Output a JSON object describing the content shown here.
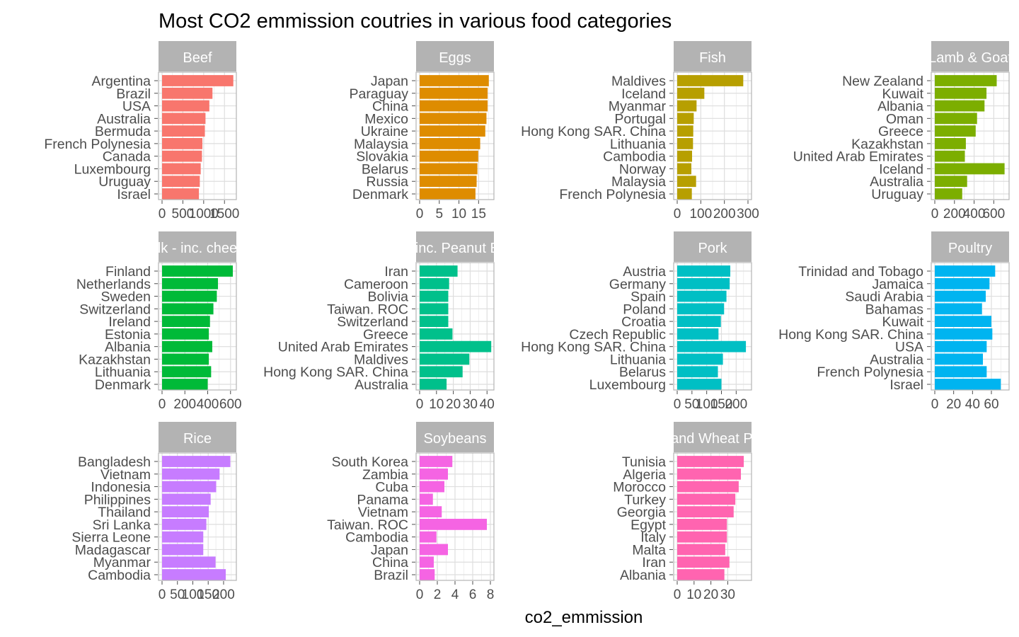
{
  "chart_data": {
    "type": "bar",
    "title": "Most CO2 emmission coutries in various food categories",
    "xlabel": "co2_emmission",
    "ylabel": "",
    "grid": true,
    "legend": "none",
    "panels": [
      {
        "name": "Beef",
        "color": "#F8766D",
        "xlim": [
          0,
          1700
        ],
        "ticks": [
          0,
          500,
          1000,
          1500
        ],
        "tick_labels": [
          "0",
          "500",
          "1000",
          "1500"
        ],
        "categories": [
          "Argentina",
          "Brazil",
          "USA",
          "Australia",
          "Bermuda",
          "French Polynesia",
          "Canada",
          "Luxembourg",
          "Uruguay",
          "Israel"
        ],
        "values": [
          1712,
          1211,
          1136,
          1044,
          1029,
          969,
          959,
          929,
          907,
          886
        ]
      },
      {
        "name": "Eggs",
        "color": "#DE8C00",
        "xlim": [
          0,
          18
        ],
        "ticks": [
          0,
          5,
          10,
          15
        ],
        "tick_labels": [
          "0",
          "5",
          "10",
          "15"
        ],
        "categories": [
          "Japan",
          "Paraguay",
          "China",
          "Mexico",
          "Ukraine",
          "Malaysia",
          "Slovakia",
          "Belarus",
          "Russia",
          "Denmark"
        ],
        "values": [
          17.6,
          17.3,
          17.3,
          17.0,
          16.7,
          15.4,
          14.9,
          14.7,
          14.5,
          14.2
        ]
      },
      {
        "name": "Fish",
        "color": "#B79F00",
        "xlim": [
          0,
          300
        ],
        "ticks": [
          0,
          100,
          200,
          300
        ],
        "tick_labels": [
          "0",
          "100",
          "200",
          "300"
        ],
        "categories": [
          "Maldives",
          "Iceland",
          "Myanmar",
          "Portugal",
          "Hong Kong SAR. China",
          "Lithuania",
          "Cambodia",
          "Norway",
          "Malaysia",
          "French Polynesia"
        ],
        "values": [
          280,
          115,
          82,
          70,
          68,
          67,
          63,
          60,
          80,
          62
        ]
      },
      {
        "name": "Lamb & Goat",
        "color": "#7CAE00",
        "xlim": [
          0,
          720
        ],
        "ticks": [
          0,
          200,
          400,
          600
        ],
        "tick_labels": [
          "0",
          "200",
          "400",
          "600"
        ],
        "categories": [
          "New Zealand",
          "Kuwait",
          "Albania",
          "Oman",
          "Greece",
          "Kazakhstan",
          "United Arab Emirates",
          "Iceland",
          "Australia",
          "Uruguay"
        ],
        "values": [
          630,
          526,
          506,
          430,
          416,
          316,
          306,
          710,
          329,
          279
        ]
      },
      {
        "name": "Milk - inc. cheese",
        "color": "#00BA38",
        "xlim": [
          0,
          620
        ],
        "ticks": [
          0,
          200,
          400,
          600
        ],
        "tick_labels": [
          "0",
          "200",
          "400",
          "600"
        ],
        "categories": [
          "Finland",
          "Netherlands",
          "Sweden",
          "Switzerland",
          "Ireland",
          "Estonia",
          "Albania",
          "Kazakhstan",
          "Lithuania",
          "Denmark"
        ],
        "values": [
          620,
          490,
          480,
          450,
          420,
          410,
          440,
          410,
          430,
          400
        ]
      },
      {
        "name": "Nuts inc. Peanut Butter",
        "color": "#00C08B",
        "xlim": [
          0,
          42
        ],
        "ticks": [
          0,
          10,
          20,
          30,
          40
        ],
        "tick_labels": [
          "0",
          "10",
          "20",
          "30",
          "40"
        ],
        "categories": [
          "Iran",
          "Cameroon",
          "Bolivia",
          "Taiwan. ROC",
          "Switzerland",
          "Greece",
          "United Arab Emirates",
          "Maldives",
          "Hong Kong SAR. China",
          "Australia"
        ],
        "values": [
          22.5,
          17.5,
          17.0,
          17.0,
          17.0,
          19.5,
          42.5,
          29.5,
          25.5,
          16.0
        ]
      },
      {
        "name": "Pork",
        "color": "#00BFC4",
        "xlim": [
          0,
          240
        ],
        "ticks": [
          0,
          50,
          100,
          150,
          200
        ],
        "tick_labels": [
          "0",
          "50",
          "100",
          "150",
          "200"
        ],
        "categories": [
          "Austria",
          "Germany",
          "Spain",
          "Poland",
          "Croatia",
          "Czech Republic",
          "Hong Kong SAR. China",
          "Lithuania",
          "Belarus",
          "Luxembourg"
        ],
        "values": [
          180,
          178,
          167,
          159,
          148,
          140,
          233,
          155,
          138,
          150
        ]
      },
      {
        "name": "Poultry",
        "color": "#00B4F0",
        "xlim": [
          0,
          75
        ],
        "ticks": [
          0,
          20,
          40,
          60
        ],
        "tick_labels": [
          "0",
          "20",
          "40",
          "60"
        ],
        "categories": [
          "Trinidad and Tobago",
          "Jamaica",
          "Saudi Arabia",
          "Bahamas",
          "Kuwait",
          "Hong Kong SAR. China",
          "USA",
          "Australia",
          "French Polynesia",
          "Israel"
        ],
        "values": [
          64,
          58,
          54,
          50,
          60,
          61,
          55,
          51,
          55,
          70
        ]
      },
      {
        "name": "Rice",
        "color": "#C77CFF",
        "xlim": [
          0,
          230
        ],
        "ticks": [
          0,
          50,
          100,
          150,
          200
        ],
        "tick_labels": [
          "0",
          "50",
          "100",
          "150",
          "200"
        ],
        "categories": [
          "Bangladesh",
          "Vietnam",
          "Indonesia",
          "Philippines",
          "Thailand",
          "Sri Lanka",
          "Sierra Leone",
          "Madagascar",
          "Myanmar",
          "Cambodia"
        ],
        "values": [
          222,
          187,
          176,
          158,
          152,
          144,
          134,
          134,
          174,
          207
        ]
      },
      {
        "name": "Soybeans",
        "color": "#F564E3",
        "xlim": [
          0,
          8
        ],
        "ticks": [
          0,
          2,
          4,
          6,
          8
        ],
        "tick_labels": [
          "0",
          "2",
          "4",
          "6",
          "8"
        ],
        "categories": [
          "South Korea",
          "Zambia",
          "Cuba",
          "Panama",
          "Vietnam",
          "Taiwan. ROC",
          "Cambodia",
          "Japan",
          "China",
          "Brazil"
        ],
        "values": [
          3.7,
          3.2,
          2.8,
          1.5,
          2.5,
          7.6,
          1.9,
          3.2,
          1.6,
          1.7
        ]
      },
      {
        "name": "Wheat and Wheat Products",
        "color": "#FF64B0",
        "xlim": [
          0,
          42
        ],
        "ticks": [
          0,
          10,
          20,
          30
        ],
        "tick_labels": [
          "0",
          "10",
          "20",
          "30"
        ],
        "categories": [
          "Tunisia",
          "Algeria",
          "Morocco",
          "Turkey",
          "Georgia",
          "Egypt",
          "Italy",
          "Malta",
          "Iran",
          "Albania"
        ],
        "values": [
          39.5,
          37.8,
          36.5,
          34.5,
          33.5,
          29.5,
          29.5,
          28.5,
          31.0,
          28.0
        ]
      }
    ]
  }
}
